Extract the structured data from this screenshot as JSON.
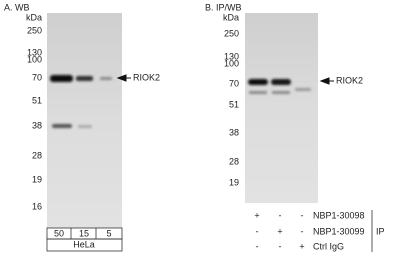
{
  "panel_a": {
    "title": "A. WB",
    "unit": "kDa",
    "markers": [
      "250",
      "130",
      "100",
      "70",
      "51",
      "38",
      "28",
      "19",
      "16"
    ],
    "target": "RIOK2",
    "lanes": [
      "50",
      "15",
      "5"
    ],
    "cell_line": "HeLa"
  },
  "panel_b": {
    "title": "B. IP/WB",
    "unit": "kDa",
    "markers": [
      "250",
      "130",
      "100",
      "70",
      "51",
      "38",
      "28",
      "19"
    ],
    "target": "RIOK2",
    "rows": [
      {
        "label": "NBP1-30098",
        "signs": [
          "+",
          "-",
          "-"
        ]
      },
      {
        "label": "NBP1-30099",
        "signs": [
          "-",
          "+",
          "-"
        ]
      },
      {
        "label": "Ctrl IgG",
        "signs": [
          "-",
          "-",
          "+"
        ]
      }
    ],
    "group": "IP"
  }
}
